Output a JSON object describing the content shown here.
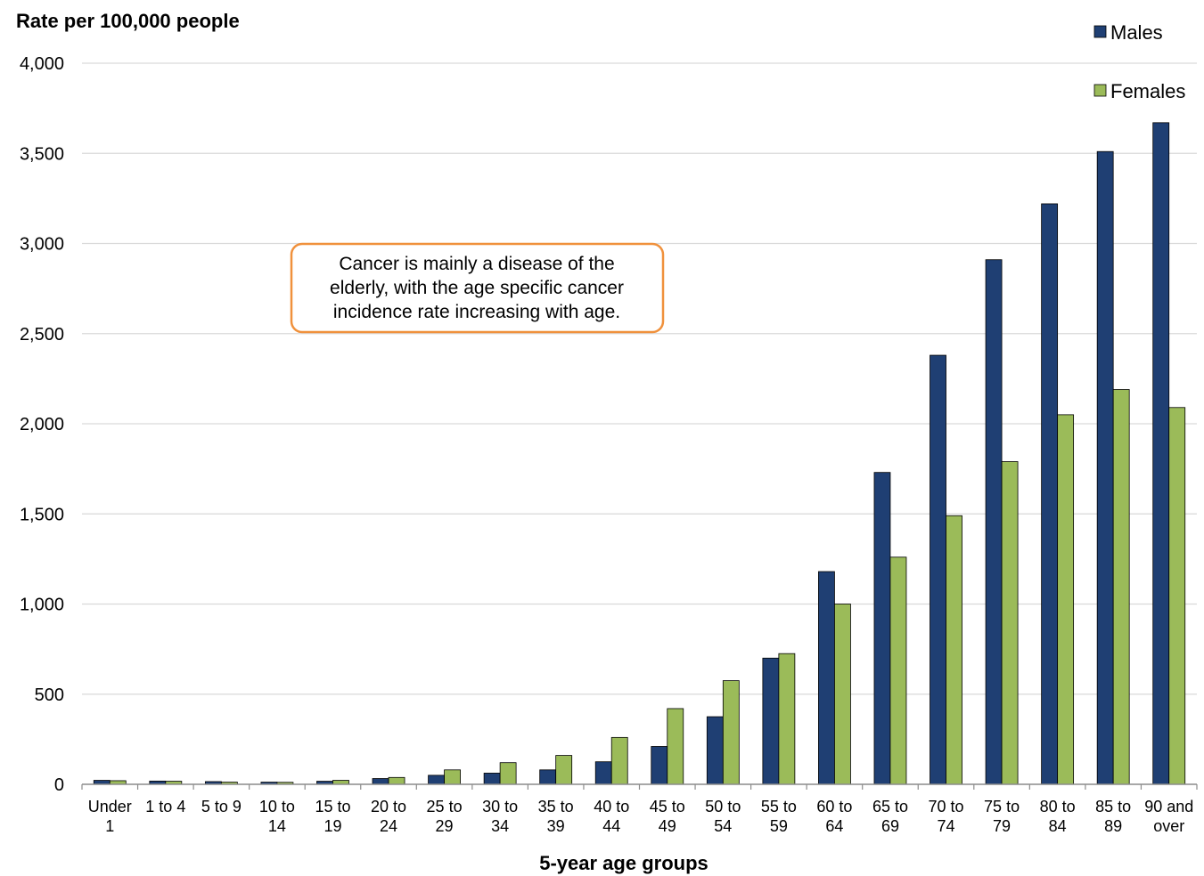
{
  "chart_data": {
    "type": "bar",
    "ylabel": "Rate per 100,000 people",
    "xlabel": "5-year age groups",
    "ylim": [
      0,
      4000
    ],
    "yticks": [
      0,
      500,
      1000,
      1500,
      2000,
      2500,
      3000,
      3500,
      4000
    ],
    "ytick_labels": [
      "0",
      "500",
      "1,000",
      "1,500",
      "2,000",
      "2,500",
      "3,000",
      "3,500",
      "4,000"
    ],
    "grid": true,
    "legend_position": "top-right",
    "categories": [
      [
        "Under",
        "1"
      ],
      [
        "1 to 4",
        ""
      ],
      [
        "5 to 9",
        ""
      ],
      [
        "10 to",
        "14"
      ],
      [
        "15 to",
        "19"
      ],
      [
        "20 to",
        "24"
      ],
      [
        "25 to",
        "29"
      ],
      [
        "30 to",
        "34"
      ],
      [
        "35 to",
        "39"
      ],
      [
        "40 to",
        "44"
      ],
      [
        "45 to",
        "49"
      ],
      [
        "50 to",
        "54"
      ],
      [
        "55 to",
        "59"
      ],
      [
        "60 to",
        "64"
      ],
      [
        "65 to",
        "69"
      ],
      [
        "70 to",
        "74"
      ],
      [
        "75 to",
        "79"
      ],
      [
        "80 to",
        "84"
      ],
      [
        "85 to",
        "89"
      ],
      [
        "90 and",
        "over"
      ]
    ],
    "series": [
      {
        "name": "Males",
        "color": "#1f3f73",
        "values": [
          22,
          18,
          15,
          12,
          17,
          32,
          50,
          62,
          80,
          125,
          210,
          375,
          700,
          1180,
          1730,
          2380,
          2910,
          3220,
          3510,
          3670
        ]
      },
      {
        "name": "Females",
        "color": "#9bbb59",
        "values": [
          20,
          17,
          12,
          11,
          22,
          38,
          80,
          120,
          160,
          260,
          420,
          575,
          725,
          1000,
          1260,
          1490,
          1790,
          2050,
          2190,
          2090
        ]
      }
    ],
    "annotation": [
      "Cancer is mainly a disease of the",
      "elderly, with the age specific cancer",
      "incidence rate increasing with age."
    ],
    "annotation_border_color": "#f0913c"
  }
}
